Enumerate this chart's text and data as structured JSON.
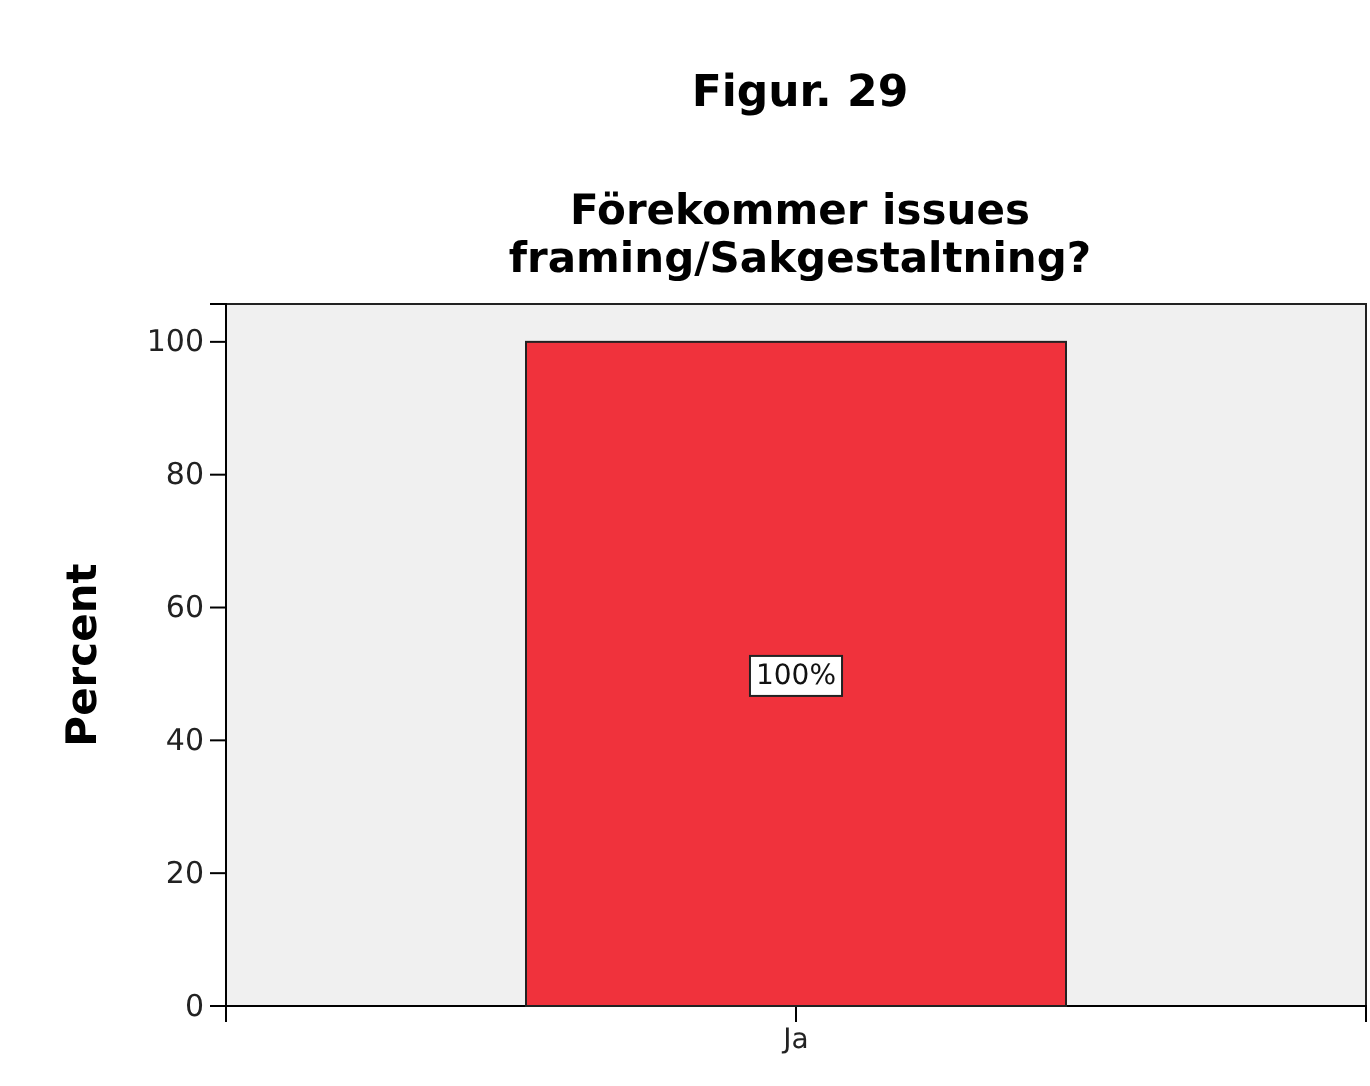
{
  "chart_data": {
    "type": "bar",
    "title": "Figur. 29",
    "subtitle": "Förekommer issues\nframing/Sakgestaltning?",
    "ylabel": "Percent",
    "categories": [
      "Ja"
    ],
    "series": [
      {
        "color": "#f0323c",
        "values": [
          100
        ],
        "value_labels": [
          "100%"
        ]
      }
    ],
    "ylim": [
      0,
      105.7
    ],
    "yticks": [
      0,
      20,
      40,
      60,
      80,
      100
    ],
    "grid": false
  }
}
